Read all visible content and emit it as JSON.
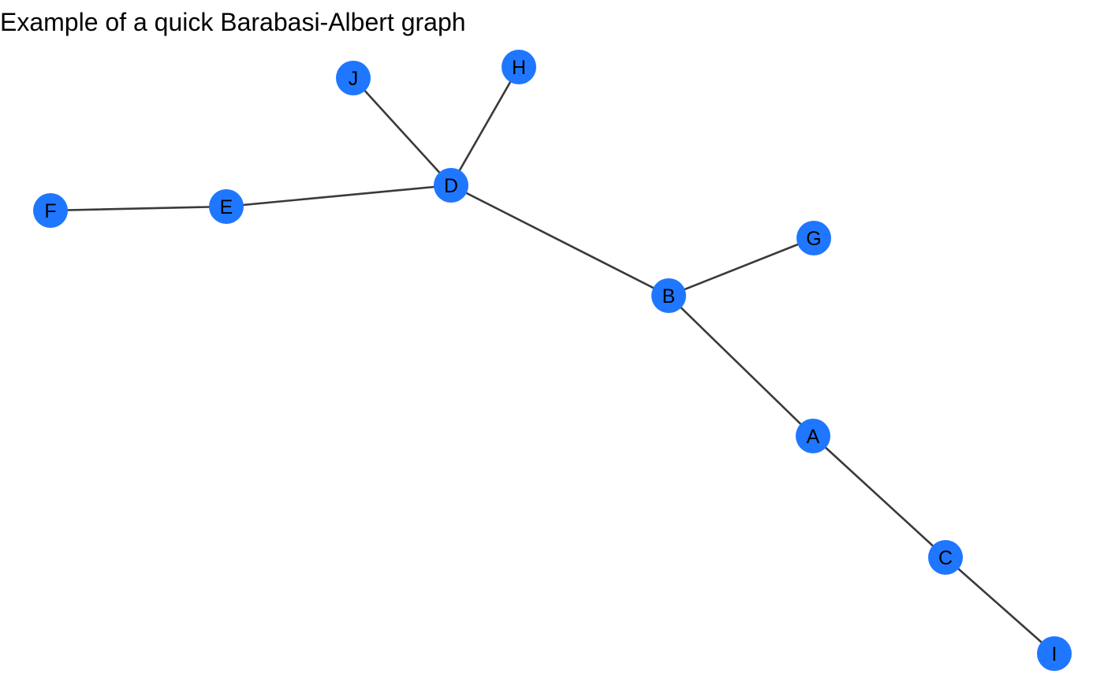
{
  "title": "Example of a quick Barabasi-Albert graph",
  "colors": {
    "node_fill": "#1f77ff",
    "edge": "#3a3a3a",
    "label": "#000000"
  },
  "graph": {
    "nodes": [
      {
        "id": "A",
        "label": "A"
      },
      {
        "id": "B",
        "label": "B"
      },
      {
        "id": "C",
        "label": "C"
      },
      {
        "id": "D",
        "label": "D"
      },
      {
        "id": "E",
        "label": "E"
      },
      {
        "id": "F",
        "label": "F"
      },
      {
        "id": "G",
        "label": "G"
      },
      {
        "id": "H",
        "label": "H"
      },
      {
        "id": "I",
        "label": "I"
      },
      {
        "id": "J",
        "label": "J"
      }
    ],
    "edges": [
      {
        "source": "F",
        "target": "E"
      },
      {
        "source": "E",
        "target": "D"
      },
      {
        "source": "J",
        "target": "D"
      },
      {
        "source": "H",
        "target": "D"
      },
      {
        "source": "D",
        "target": "B"
      },
      {
        "source": "B",
        "target": "G"
      },
      {
        "source": "B",
        "target": "A"
      },
      {
        "source": "A",
        "target": "C"
      },
      {
        "source": "C",
        "target": "I"
      }
    ]
  }
}
